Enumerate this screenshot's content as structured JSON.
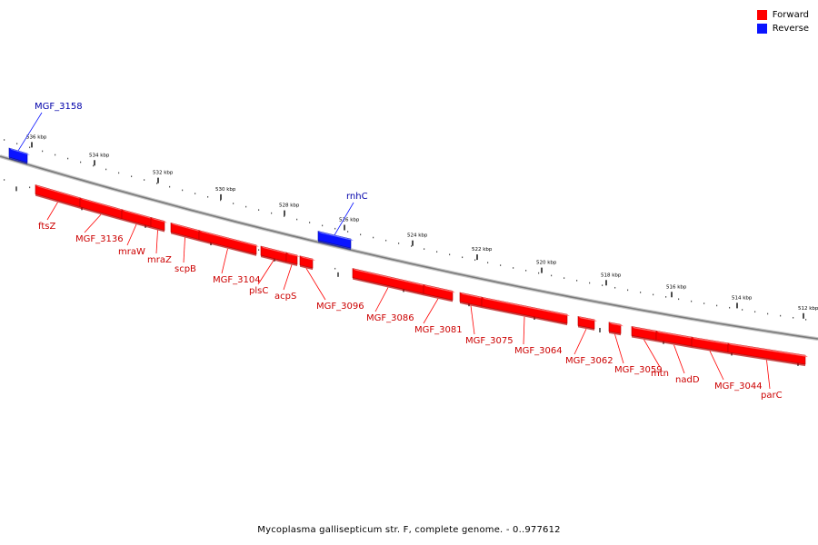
{
  "legend": {
    "forward": {
      "label": "Forward",
      "color": "#ff0000"
    },
    "reverse": {
      "label": "Reverse",
      "color": "#0a14ff"
    }
  },
  "caption": "Mycoplasma gallisepticum str. F, complete genome. - 0..977612",
  "ticks": [
    "536 kbp",
    "534 kbp",
    "532 kbp",
    "530 kbp",
    "528 kbp",
    "526 kbp",
    "524 kbp",
    "522 kbp",
    "520 kbp",
    "518 kbp",
    "516 kbp",
    "514 kbp",
    "512 kbp"
  ],
  "genes": [
    {
      "label": "MGF_3158",
      "strand": "reverse"
    },
    {
      "label": "ftsZ",
      "strand": "forward"
    },
    {
      "label": "MGF_3136",
      "strand": "forward"
    },
    {
      "label": "mraW",
      "strand": "forward"
    },
    {
      "label": "mraZ",
      "strand": "forward"
    },
    {
      "label": "scpB",
      "strand": "forward"
    },
    {
      "label": "MGF_3104",
      "strand": "forward"
    },
    {
      "label": "plsC",
      "strand": "forward"
    },
    {
      "label": "acpS",
      "strand": "forward"
    },
    {
      "label": "MGF_3096",
      "strand": "forward"
    },
    {
      "label": "rnhC",
      "strand": "reverse"
    },
    {
      "label": "MGF_3086",
      "strand": "forward"
    },
    {
      "label": "MGF_3081",
      "strand": "forward"
    },
    {
      "label": "MGF_3075",
      "strand": "forward"
    },
    {
      "label": "MGF_3064",
      "strand": "forward"
    },
    {
      "label": "MGF_3062",
      "strand": "forward"
    },
    {
      "label": "MGF_3059",
      "strand": "forward"
    },
    {
      "label": "mtn",
      "strand": "forward"
    },
    {
      "label": "nadD",
      "strand": "forward"
    },
    {
      "label": "MGF_3044",
      "strand": "forward"
    },
    {
      "label": "parC",
      "strand": "forward"
    }
  ]
}
